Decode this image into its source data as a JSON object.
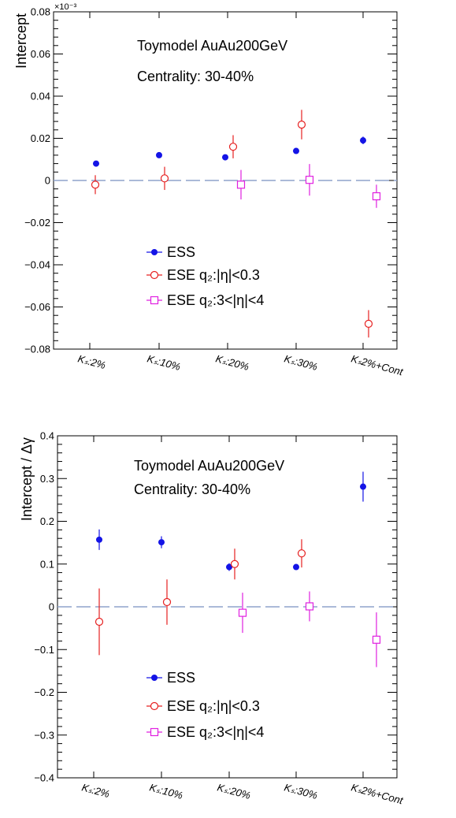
{
  "chart_data": [
    {
      "type": "scatter",
      "title": "Toymodel AuAu200GeV",
      "subtitle": "Centrality: 30-40%",
      "ylabel": "Intercept",
      "y_exponent_label": "×10⁻³",
      "ylim": [
        -0.08,
        0.08
      ],
      "yticks": [
        -0.08,
        -0.06,
        -0.04,
        -0.02,
        0,
        0.02,
        0.04,
        0.06,
        0.08
      ],
      "ytick_labels": [
        "−0.08",
        "−0.06",
        "−0.04",
        "−0.02",
        "0",
        "0.02",
        "0.04",
        "0.06",
        "0.08"
      ],
      "categories": [
        "Kₛ:2%",
        "Kₛ:10%",
        "Kₛ:20%",
        "Kₛ:30%",
        "Kₛ2%+Cont"
      ],
      "reference_line": 0,
      "legend_position": "lower-left",
      "series": [
        {
          "name": "ESS",
          "marker": "filled-circle",
          "color": "#1414e6",
          "values": [
            0.008,
            0.012,
            0.011,
            0.014,
            0.019
          ],
          "errors": [
            0.0008,
            0.0008,
            0.0008,
            0.0008,
            0.0018
          ]
        },
        {
          "name": "ESE q₂:|η|<0.3",
          "marker": "open-circle",
          "color": "#e62020",
          "values": [
            -0.002,
            0.001,
            0.016,
            0.0265,
            -0.068
          ],
          "errors": [
            0.0045,
            0.0055,
            0.0055,
            0.007,
            0.0065
          ]
        },
        {
          "name": "ESE q₂:3<|η|<4",
          "marker": "open-square",
          "color": "#e020e0",
          "values": [
            null,
            null,
            -0.002,
            0.0003,
            -0.0075
          ],
          "errors": [
            null,
            null,
            0.007,
            0.0075,
            0.0055
          ]
        }
      ]
    },
    {
      "type": "scatter",
      "title": "Toymodel AuAu200GeV",
      "subtitle": "Centrality: 30-40%",
      "ylabel": "Intercept / Δγ",
      "ylim": [
        -0.4,
        0.4
      ],
      "yticks": [
        -0.4,
        -0.3,
        -0.2,
        -0.1,
        0,
        0.1,
        0.2,
        0.3,
        0.4
      ],
      "ytick_labels": [
        "−0.4",
        "−0.3",
        "−0.2",
        "−0.1",
        "0",
        "0.1",
        "0.2",
        "0.3",
        "0.4"
      ],
      "categories": [
        "Kₛ:2%",
        "Kₛ:10%",
        "Kₛ:20%",
        "Kₛ:30%",
        "Kₛ2%+Cont"
      ],
      "reference_line": 0,
      "legend_position": "lower-left",
      "series": [
        {
          "name": "ESS",
          "marker": "filled-circle",
          "color": "#1414e6",
          "values": [
            0.157,
            0.151,
            0.093,
            0.093,
            0.281
          ],
          "errors": [
            0.024,
            0.014,
            0.009,
            0.004,
            0.035
          ]
        },
        {
          "name": "ESE q₂:|η|<0.3",
          "marker": "open-circle",
          "color": "#e62020",
          "values": [
            -0.035,
            0.011,
            0.1,
            0.125,
            null
          ],
          "errors": [
            0.078,
            0.053,
            0.036,
            0.033,
            null
          ]
        },
        {
          "name": "ESE q₂:3<|η|<4",
          "marker": "open-square",
          "color": "#e020e0",
          "values": [
            null,
            null,
            -0.014,
            0.001,
            -0.077
          ],
          "errors": [
            null,
            null,
            0.047,
            0.035,
            0.064
          ]
        }
      ]
    }
  ]
}
